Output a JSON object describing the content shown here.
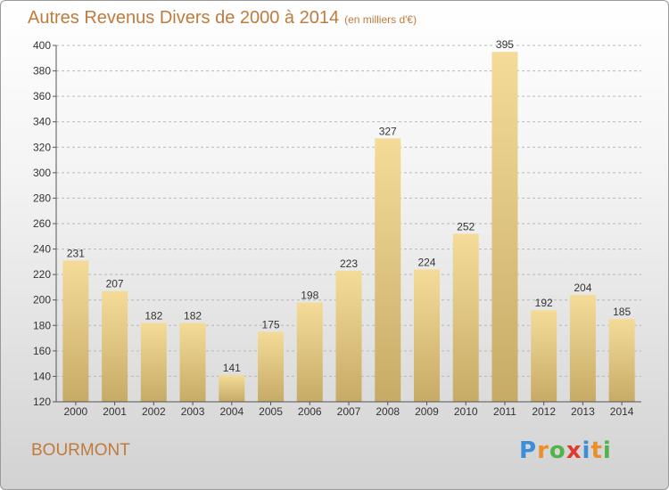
{
  "header": {
    "title": "Autres Revenus Divers de 2000 à 2014",
    "subtitle": "(en milliers d'€)"
  },
  "footer": {
    "commune": "BOURMONT",
    "logo_letters": [
      "P",
      "r",
      "o",
      "x",
      "i",
      "t",
      "i"
    ],
    "logo_colors": [
      "#3a8fd8",
      "#e8902b",
      "#52b34a",
      "#e03a2f",
      "#3a8fd8",
      "#e8902b",
      "#52b34a"
    ]
  },
  "colors": {
    "title": "#c07a3c",
    "bar_light": "#f4dc98",
    "bar_dark": "#c6ab66",
    "axis": "#555555",
    "grid": "#b8b8b8"
  },
  "chart_data": {
    "type": "bar",
    "title": "Autres Revenus Divers de 2000 à 2014",
    "subtitle": "(en milliers d'€)",
    "categories": [
      "2000",
      "2001",
      "2002",
      "2003",
      "2004",
      "2005",
      "2006",
      "2007",
      "2008",
      "2009",
      "2010",
      "2011",
      "2012",
      "2013",
      "2014"
    ],
    "values": [
      231,
      207,
      182,
      182,
      141,
      175,
      198,
      223,
      327,
      224,
      252,
      395,
      192,
      204,
      185
    ],
    "ylim": [
      120,
      400
    ],
    "yticks": [
      120,
      140,
      160,
      180,
      200,
      220,
      240,
      260,
      280,
      300,
      320,
      340,
      360,
      380,
      400
    ],
    "grid": true,
    "data_labels": true
  }
}
